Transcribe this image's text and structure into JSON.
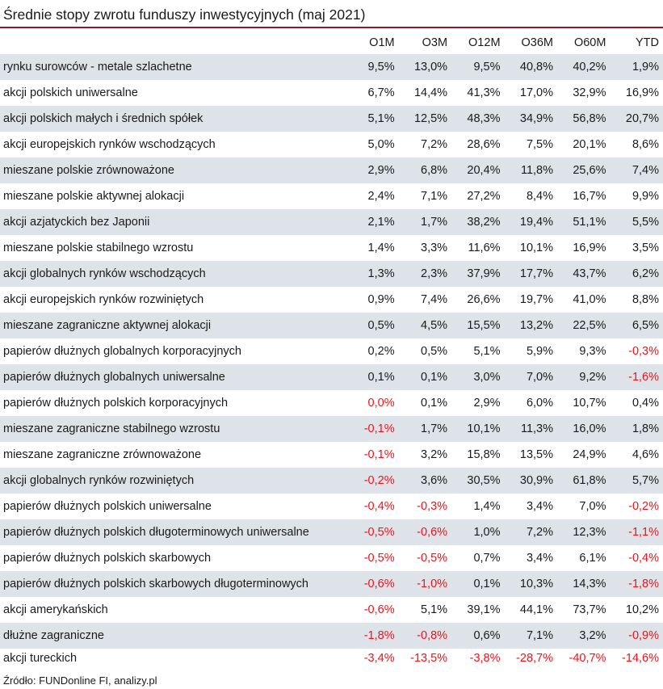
{
  "title": "Średnie stopy zwrotu funduszy inwestycyjnych (maj 2021)",
  "source": "Źródło: FUNDonline FI, analizy.pl",
  "colors": {
    "negative": "#e8161d",
    "stripe": "#dde3e8",
    "rule": "#8b1a2b"
  },
  "chart_data": {
    "type": "table",
    "title": "Średnie stopy zwrotu funduszy inwestycyjnych (maj 2021)",
    "columns": [
      "O1M",
      "O3M",
      "O12M",
      "O36M",
      "O60M",
      "YTD"
    ],
    "rows": [
      {
        "name": "rynku surowców - metale szlachetne",
        "values": [
          "9,5%",
          "13,0%",
          "9,5%",
          "40,8%",
          "40,2%",
          "1,9%"
        ]
      },
      {
        "name": "akcji polskich uniwersalne",
        "values": [
          "6,7%",
          "14,4%",
          "41,3%",
          "17,0%",
          "32,9%",
          "16,9%"
        ]
      },
      {
        "name": "akcji polskich małych i średnich spółek",
        "values": [
          "5,1%",
          "12,5%",
          "48,3%",
          "34,9%",
          "56,8%",
          "20,7%"
        ]
      },
      {
        "name": "akcji europejskich rynków wschodzących",
        "values": [
          "5,0%",
          "7,2%",
          "28,6%",
          "7,5%",
          "20,1%",
          "8,6%"
        ]
      },
      {
        "name": "mieszane polskie zrównoważone",
        "values": [
          "2,9%",
          "6,8%",
          "20,4%",
          "11,8%",
          "25,6%",
          "7,4%"
        ]
      },
      {
        "name": "mieszane polskie aktywnej alokacji",
        "values": [
          "2,4%",
          "7,1%",
          "27,2%",
          "8,4%",
          "16,7%",
          "9,9%"
        ]
      },
      {
        "name": "akcji azjatyckich bez Japonii",
        "values": [
          "2,1%",
          "1,7%",
          "38,2%",
          "19,4%",
          "51,1%",
          "5,5%"
        ]
      },
      {
        "name": "mieszane polskie stabilnego wzrostu",
        "values": [
          "1,4%",
          "3,3%",
          "11,6%",
          "10,1%",
          "16,9%",
          "3,5%"
        ]
      },
      {
        "name": "akcji globalnych rynków wschodzących",
        "values": [
          "1,3%",
          "2,3%",
          "37,9%",
          "17,7%",
          "43,7%",
          "6,2%"
        ]
      },
      {
        "name": "akcji europejskich rynków rozwiniętych",
        "values": [
          "0,9%",
          "7,4%",
          "26,6%",
          "19,7%",
          "41,0%",
          "8,8%"
        ]
      },
      {
        "name": "mieszane zagraniczne aktywnej alokacji",
        "values": [
          "0,5%",
          "4,5%",
          "15,5%",
          "13,2%",
          "22,5%",
          "6,5%"
        ]
      },
      {
        "name": "papierów dłużnych globalnych korporacyjnych",
        "values": [
          "0,2%",
          "0,5%",
          "5,1%",
          "5,9%",
          "9,3%",
          "-0,3%"
        ]
      },
      {
        "name": "papierów dłużnych globalnych uniwersalne",
        "values": [
          "0,1%",
          "0,1%",
          "3,0%",
          "7,0%",
          "9,2%",
          "-1,6%"
        ]
      },
      {
        "name": "papierów dłużnych polskich korporacyjnych",
        "values": [
          "0,0%",
          "0,1%",
          "2,9%",
          "6,0%",
          "10,7%",
          "0,4%"
        ],
        "red_cells": [
          0
        ]
      },
      {
        "name": "mieszane zagraniczne stabilnego wzrostu",
        "values": [
          "-0,1%",
          "1,7%",
          "10,1%",
          "11,3%",
          "16,0%",
          "1,8%"
        ]
      },
      {
        "name": "mieszane zagraniczne zrównoważone",
        "values": [
          "-0,1%",
          "3,2%",
          "15,8%",
          "13,5%",
          "24,9%",
          "4,6%"
        ]
      },
      {
        "name": "akcji globalnych rynków rozwiniętych",
        "values": [
          "-0,2%",
          "3,6%",
          "30,5%",
          "30,9%",
          "61,8%",
          "5,7%"
        ]
      },
      {
        "name": "papierów dłużnych polskich uniwersalne",
        "values": [
          "-0,4%",
          "-0,3%",
          "1,4%",
          "3,4%",
          "7,0%",
          "-0,2%"
        ]
      },
      {
        "name": "papierów dłużnych polskich długoterminowych uniwersalne",
        "values": [
          "-0,5%",
          "-0,6%",
          "1,0%",
          "7,2%",
          "12,3%",
          "-1,1%"
        ]
      },
      {
        "name": "papierów dłużnych polskich skarbowych",
        "values": [
          "-0,5%",
          "-0,5%",
          "0,7%",
          "3,4%",
          "6,1%",
          "-0,4%"
        ]
      },
      {
        "name": "papierów dłużnych polskich skarbowych długoterminowych",
        "values": [
          "-0,6%",
          "-1,0%",
          "0,1%",
          "10,3%",
          "14,3%",
          "-1,8%"
        ]
      },
      {
        "name": "akcji amerykańskich",
        "values": [
          "-0,6%",
          "5,1%",
          "39,1%",
          "44,1%",
          "73,7%",
          "10,2%"
        ]
      },
      {
        "name": "dłużne zagraniczne",
        "values": [
          "-1,8%",
          "-0,8%",
          "0,6%",
          "7,1%",
          "3,2%",
          "-0,9%"
        ]
      },
      {
        "name": "akcji tureckich",
        "values": [
          "-3,4%",
          "-13,5%",
          "-3,8%",
          "-28,7%",
          "-40,7%",
          "-14,6%"
        ]
      }
    ]
  }
}
